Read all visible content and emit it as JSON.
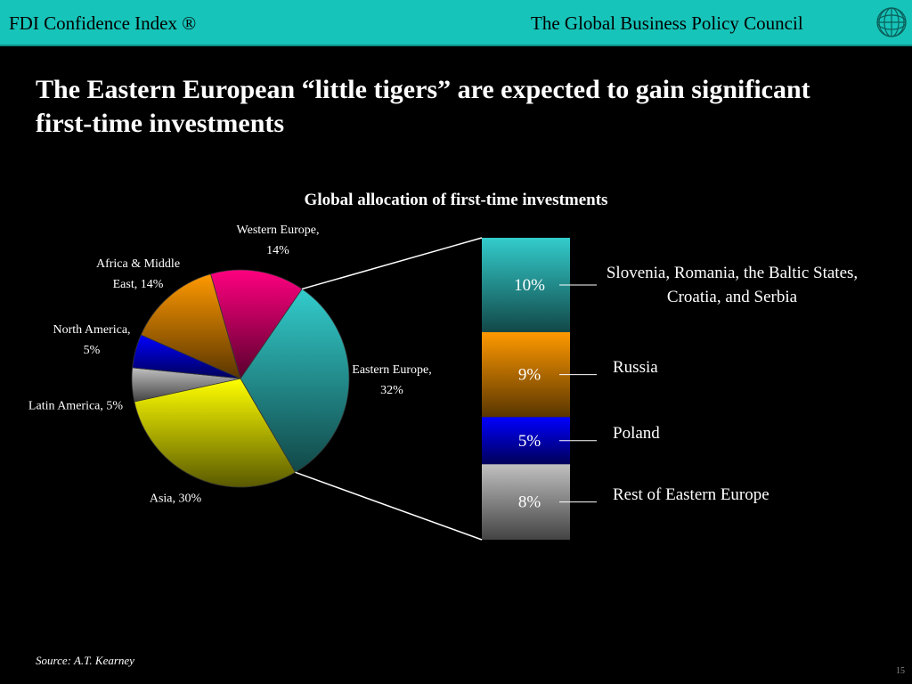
{
  "header": {
    "left": "FDI Confidence Index ®",
    "right": "The Global Business Policy Council"
  },
  "title": "The Eastern European “little tigers” are expected to gain significant first-time investments",
  "chart_data": [
    {
      "type": "pie",
      "title": "Global allocation of first-time investments",
      "categories": [
        "Eastern Europe, 32%",
        "Asia, 30%",
        "Latin America, 5%",
        "North America, 5%",
        "Africa & Middle East, 14%",
        "Western Europe, 14%"
      ],
      "values": [
        32,
        30,
        5,
        5,
        14,
        14
      ],
      "colors": [
        "#33cccc",
        "#ffff00",
        "#c0c0c0",
        "#0000ff",
        "#ff9900",
        "#ff0080"
      ]
    },
    {
      "type": "bar",
      "stacked": true,
      "categories": [
        "Rest of Eastern Europe",
        "Poland",
        "Russia",
        "Slovenia, Romania, the Baltic States, Croatia, and Serbia"
      ],
      "values": [
        8,
        5,
        9,
        10
      ],
      "value_labels": [
        "8%",
        "5%",
        "9%",
        "10%"
      ],
      "colors": [
        "#c0c0c0",
        "#0000ff",
        "#ff9900",
        "#33cccc"
      ]
    }
  ],
  "source": "Source: A.T. Kearney",
  "page_number": "15"
}
